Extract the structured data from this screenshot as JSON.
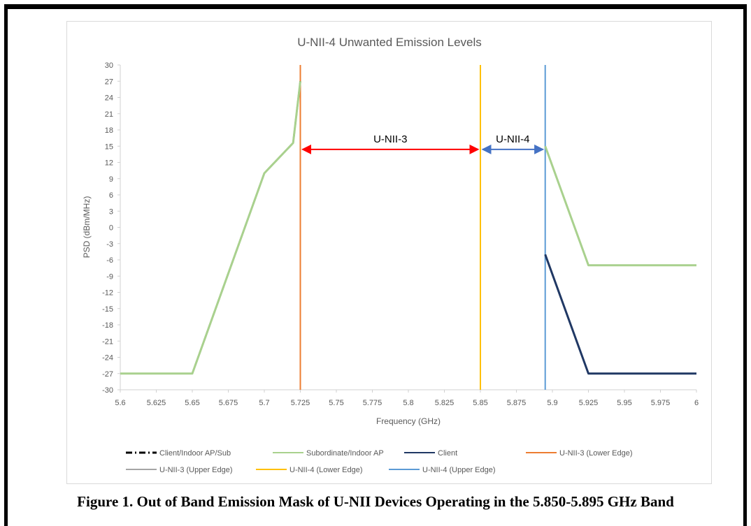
{
  "caption": "Figure 1. Out of Band Emission Mask of U-NII Devices Operating in the 5.850-5.895 GHz Band",
  "chart_data": {
    "type": "line",
    "title": "U-NII-4 Unwanted Emission Levels",
    "xlabel": "Frequency (GHz)",
    "ylabel": "PSD (dBm/MHz)",
    "xlim": [
      5.6,
      6.0
    ],
    "ylim": [
      -30,
      30
    ],
    "xticks": [
      "5.6",
      "5.625",
      "5.65",
      "5.675",
      "5.7",
      "5.725",
      "5.75",
      "5.775",
      "5.8",
      "5.825",
      "5.85",
      "5.875",
      "5.9",
      "5.925",
      "5.95",
      "5.975",
      "6"
    ],
    "yticks": [
      "-30",
      "-27",
      "-24",
      "-21",
      "-18",
      "-15",
      "-12",
      "-9",
      "-6",
      "-3",
      "0",
      "3",
      "6",
      "9",
      "12",
      "15",
      "18",
      "21",
      "24",
      "27",
      "30"
    ],
    "grid": false,
    "legend_position": "bottom",
    "series": [
      {
        "name": "Client/Indoor AP/Sub",
        "color": "#000000",
        "style": "dash-dot",
        "x": [
          5.6,
          5.65,
          5.7,
          5.72,
          5.725
        ],
        "y": [
          -27,
          -27,
          10,
          15.6,
          27
        ]
      },
      {
        "name": "Subordinate/Indoor AP",
        "color": "#a9d18e",
        "style": "solid",
        "x": [
          5.6,
          5.65,
          5.7,
          5.72,
          5.725
        ],
        "y": [
          -27,
          -27,
          10,
          15.6,
          27
        ]
      },
      {
        "name": "Subordinate/Indoor AP",
        "color": "#a9d18e",
        "style": "solid",
        "legend": false,
        "x": [
          5.895,
          5.925,
          6.0
        ],
        "y": [
          15,
          -7,
          -7
        ]
      },
      {
        "name": "Client",
        "color": "#203864",
        "style": "solid",
        "x": [
          5.895,
          5.925,
          6.0
        ],
        "y": [
          -5,
          -27,
          -27
        ]
      }
    ],
    "vlines": [
      {
        "name": "U-NII-3 (Lower Edge)",
        "x": 5.725,
        "color": "#ed7d31"
      },
      {
        "name": "U-NII-3 (Upper Edge)",
        "x": 5.85,
        "color": "#a5a5a5",
        "hidden": true
      },
      {
        "name": "U-NII-4 (Lower Edge)",
        "x": 5.85,
        "color": "#ffc000"
      },
      {
        "name": "U-NII-4 (Upper Edge)",
        "x": 5.895,
        "color": "#5b9bd5"
      }
    ],
    "annotations": [
      {
        "text": "U-NII-3",
        "x1": 5.725,
        "x2": 5.85,
        "y": 14.4,
        "color": "#ff0000"
      },
      {
        "text": "U-NII-4",
        "x1": 5.85,
        "x2": 5.895,
        "y": 14.4,
        "color": "#4472c4"
      }
    ],
    "legend": [
      {
        "label": "Client/Indoor AP/Sub",
        "color": "#000000",
        "style": "dash-dot"
      },
      {
        "label": "Subordinate/Indoor AP",
        "color": "#a9d18e",
        "style": "solid"
      },
      {
        "label": "Client",
        "color": "#203864",
        "style": "solid"
      },
      {
        "label": "U-NII-3 (Lower Edge)",
        "color": "#ed7d31",
        "style": "solid"
      },
      {
        "label": "U-NII-3 (Upper Edge)",
        "color": "#a5a5a5",
        "style": "solid"
      },
      {
        "label": "U-NII-4 (Lower Edge)",
        "color": "#ffc000",
        "style": "solid"
      },
      {
        "label": "U-NII-4 (Upper Edge)",
        "color": "#5b9bd5",
        "style": "solid"
      }
    ]
  }
}
